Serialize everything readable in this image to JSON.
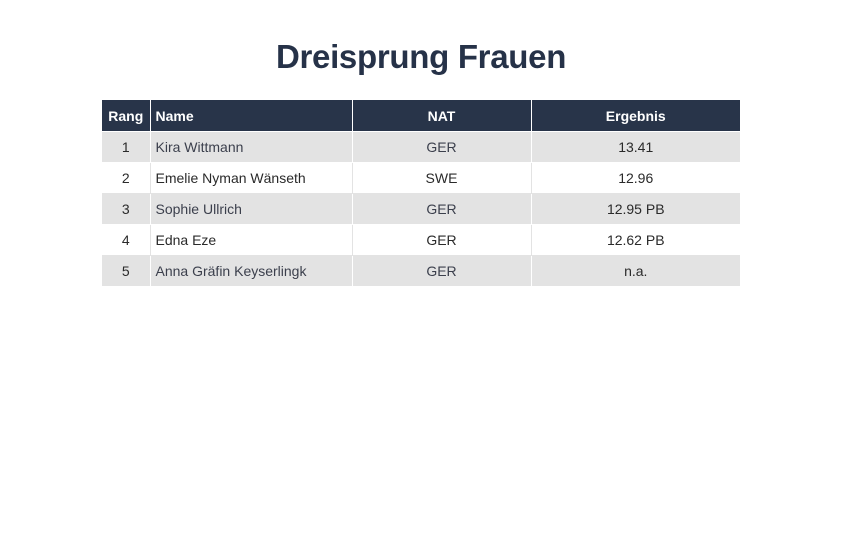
{
  "title": "Dreisprung Frauen",
  "table": {
    "headers": {
      "rang": "Rang",
      "name": "Name",
      "nat": "NAT",
      "ergebnis": "Ergebnis"
    },
    "rows": [
      {
        "rang": "1",
        "name": "Kira Wittmann",
        "nat": "GER",
        "ergebnis": "13.41"
      },
      {
        "rang": "2",
        "name": "Emelie Nyman Wänseth",
        "nat": "SWE",
        "ergebnis": "12.96"
      },
      {
        "rang": "3",
        "name": "Sophie Ullrich",
        "nat": "GER",
        "ergebnis": "12.95 PB"
      },
      {
        "rang": "4",
        "name": "Edna Eze",
        "nat": "GER",
        "ergebnis": "12.62 PB"
      },
      {
        "rang": "5",
        "name": "Anna Gräfin Keyserlingk",
        "nat": "GER",
        "ergebnis": "n.a."
      }
    ]
  },
  "colors": {
    "header_bg": "#283449",
    "title": "#263248",
    "stripe": "#e3e3e3"
  }
}
